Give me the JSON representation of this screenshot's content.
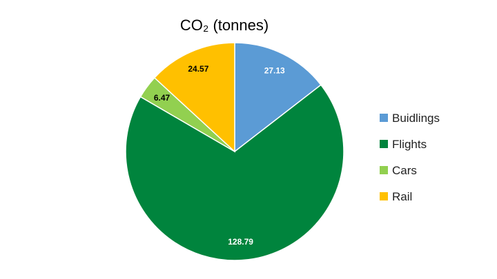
{
  "chart_data": {
    "type": "pie",
    "title": "CO₂ (tonnes)",
    "slices": [
      {
        "name": "Buidlings",
        "value": 27.13,
        "label": "27.13",
        "color": "#5B9BD5",
        "label_color": "#ffffff"
      },
      {
        "name": "Flights",
        "value": 128.79,
        "label": "128.79",
        "color": "#00843D",
        "label_color": "#ffffff"
      },
      {
        "name": "Cars",
        "value": 6.47,
        "label": "6.47",
        "color": "#92D050",
        "label_color": "#000000"
      },
      {
        "name": "Rail",
        "value": 24.57,
        "label": "24.57",
        "color": "#FFC000",
        "label_color": "#000000"
      }
    ],
    "start_angle": "12 o'clock",
    "direction": "clockwise",
    "legend_position": "right"
  }
}
